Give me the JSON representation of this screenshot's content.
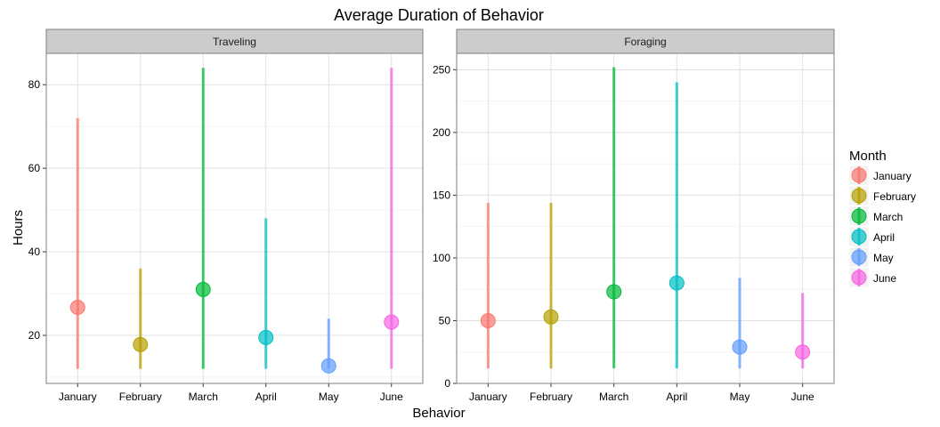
{
  "chart_data": {
    "type": "scatter",
    "title": "Average Duration of Behavior",
    "xlabel": "Behavior",
    "ylabel": "Hours",
    "categories": [
      "January",
      "February",
      "March",
      "April",
      "May",
      "June"
    ],
    "legend": {
      "title": "Month",
      "position": "right",
      "items": [
        {
          "label": "January",
          "color": "#F8766D"
        },
        {
          "label": "February",
          "color": "#B79F00"
        },
        {
          "label": "March",
          "color": "#00BA38"
        },
        {
          "label": "April",
          "color": "#00BFC4"
        },
        {
          "label": "May",
          "color": "#619CFF"
        },
        {
          "label": "June",
          "color": "#F564E3"
        }
      ]
    },
    "grid": true,
    "facets": [
      {
        "name": "Traveling",
        "ylim": [
          8.5,
          87.5
        ],
        "yticks": [
          20,
          40,
          60,
          80
        ],
        "points": [
          {
            "month": "January",
            "mean": 26.7,
            "low": 12,
            "high": 72
          },
          {
            "month": "February",
            "mean": 17.8,
            "low": 12,
            "high": 36
          },
          {
            "month": "March",
            "mean": 31.0,
            "low": 12,
            "high": 84
          },
          {
            "month": "April",
            "mean": 19.5,
            "low": 12,
            "high": 48
          },
          {
            "month": "May",
            "mean": 12.7,
            "low": 12,
            "high": 24
          },
          {
            "month": "June",
            "mean": 23.2,
            "low": 12,
            "high": 84
          }
        ]
      },
      {
        "name": "Foraging",
        "ylim": [
          0,
          263
        ],
        "yticks": [
          0,
          50,
          100,
          150,
          200,
          250
        ],
        "points": [
          {
            "month": "January",
            "mean": 50,
            "low": 12,
            "high": 144
          },
          {
            "month": "February",
            "mean": 53,
            "low": 12,
            "high": 144
          },
          {
            "month": "March",
            "mean": 73,
            "low": 12,
            "high": 252
          },
          {
            "month": "April",
            "mean": 80,
            "low": 12,
            "high": 240
          },
          {
            "month": "May",
            "mean": 29,
            "low": 12,
            "high": 84
          },
          {
            "month": "June",
            "mean": 25,
            "low": 12,
            "high": 72
          }
        ]
      }
    ]
  }
}
